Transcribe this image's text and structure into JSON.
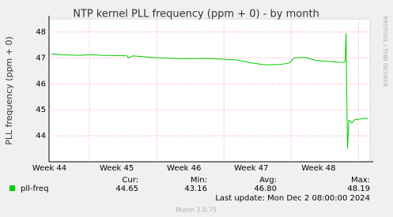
{
  "chart_data": {
    "type": "line",
    "title": "NTP kernel PLL frequency (ppm + 0) - by month",
    "y_label": "PLL frequency (ppm + 0)",
    "watermark": "RRDTOOL / TOBI OETIKER",
    "footer": "Munin 2.0.75",
    "last_update": "Last update: Mon Dec  2 08:00:00 2024",
    "xlim": [
      0,
      33.4
    ],
    "xticks": [
      {
        "value": 4.2,
        "label": "Week 44"
      },
      {
        "value": 11.2,
        "label": "Week 45"
      },
      {
        "value": 18.2,
        "label": "Week 46"
      },
      {
        "value": 25.2,
        "label": "Week 47"
      },
      {
        "value": 32.2,
        "label": "Week 48"
      }
    ],
    "ylim": [
      43,
      48.5
    ],
    "yticks": [
      44,
      45,
      46,
      47,
      48
    ],
    "grid": true,
    "x": [
      0.25,
      1.5,
      3.1,
      4.4,
      5.6,
      8.1,
      8.3,
      8.7,
      9.7,
      11.4,
      13.8,
      16.3,
      18.0,
      19.6,
      20.8,
      22.5,
      24.1,
      25.0,
      25.5,
      26.6,
      27.8,
      29.5,
      30.6,
      30.8,
      30.9,
      31.05,
      31.2,
      31.5,
      31.8,
      32.4,
      32.9,
      33.2
    ],
    "series": [
      {
        "name": "pll-freq",
        "color": "#00cc00",
        "values": [
          47.15,
          47.12,
          47.1,
          47.12,
          47.1,
          47.08,
          47.0,
          47.08,
          47.05,
          47.0,
          46.97,
          46.98,
          46.95,
          46.92,
          46.82,
          46.73,
          46.75,
          46.8,
          47.0,
          47.02,
          46.9,
          46.85,
          46.82,
          46.85,
          47.95,
          43.5,
          44.6,
          44.5,
          44.62,
          44.65,
          44.68,
          44.65
        ]
      }
    ],
    "summary": {
      "labels": [
        "Cur:",
        "Min:",
        "Avg:",
        "Max:"
      ],
      "values": [
        44.65,
        43.16,
        46.8,
        48.19
      ],
      "value_labels": [
        "44.65",
        "43.16",
        "46.80",
        "48.19"
      ]
    }
  }
}
